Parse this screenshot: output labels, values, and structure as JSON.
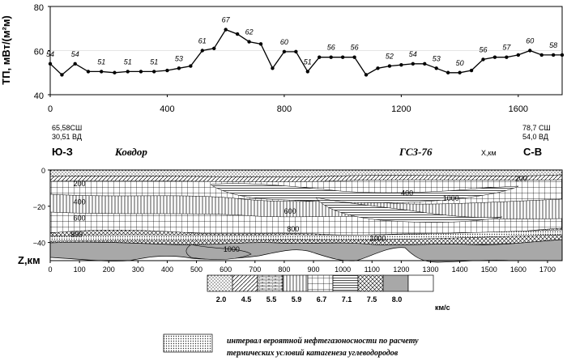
{
  "chart_data": [
    {
      "type": "line",
      "ylabel": "ТП, мВт/(м²м)",
      "ylim": [
        40,
        80
      ],
      "xlim": [
        0,
        1750
      ],
      "yticks": [
        "40",
        "60",
        "80"
      ],
      "xticks": [
        "0",
        "400",
        "800",
        "1200",
        "1600"
      ],
      "point_labels": [
        "54",
        "54",
        "51",
        "51",
        "51",
        "53",
        "61",
        "67",
        "62",
        "60",
        "51",
        "56",
        "56",
        "52",
        "54",
        "53",
        "50",
        "56",
        "57",
        "60",
        "58"
      ],
      "series": [
        {
          "x": [
            0,
            40,
            85,
            130,
            175,
            220,
            265,
            310,
            355,
            400,
            440,
            480,
            520,
            560,
            600,
            640,
            680,
            720,
            760,
            800,
            840,
            880,
            920,
            960,
            1000,
            1040,
            1080,
            1120,
            1160,
            1200,
            1240,
            1280,
            1320,
            1360,
            1400,
            1440,
            1480,
            1520,
            1560,
            1600,
            1640,
            1680,
            1720,
            1750
          ],
          "y": [
            54,
            49,
            54,
            50.5,
            50.5,
            50,
            50.5,
            50.5,
            50.5,
            51,
            52,
            53,
            60,
            61,
            69.5,
            67.5,
            64,
            63,
            52,
            59.5,
            59.5,
            50.5,
            57,
            57,
            57,
            57,
            49,
            52,
            53,
            53.5,
            54,
            54,
            52,
            50,
            50,
            51,
            56,
            57,
            57,
            58,
            60,
            58,
            58,
            58
          ]
        }
      ]
    },
    {
      "type": "heatmap",
      "profile_name": "ГСЗ-76",
      "site_name": "Ковдор",
      "xlabel": "X,км",
      "ylabel": "Z,км",
      "xlim": [
        0,
        1750
      ],
      "ylim": [
        -50,
        0
      ],
      "xticks": [
        "0",
        "100",
        "200",
        "300",
        "400",
        "500",
        "600",
        "700",
        "800",
        "900",
        "1000",
        "1100",
        "1200",
        "1300",
        "1400",
        "1500",
        "1600",
        "1700"
      ],
      "yticks": [
        "0",
        "−20",
        "−40"
      ],
      "left_end": {
        "direction": "Ю-З",
        "coord1": "65,58СШ",
        "coord2": "30,51 ВД"
      },
      "right_end": {
        "direction": "С-В",
        "coord1": "78,7 СШ",
        "coord2": "54,0 ВД"
      },
      "isotherm_labels": [
        "200",
        "400",
        "600",
        "800",
        "1000",
        "200",
        "400",
        "600",
        "800",
        "1000",
        "1000"
      ],
      "velocity_scale": {
        "values": [
          "2.0",
          "4.5",
          "5.5",
          "5.9",
          "6.7",
          "7.1",
          "7.5",
          "8.0"
        ],
        "unit": "км/с"
      },
      "legend": {
        "line1": "интервал вероятной нефтегазоносности по расчету",
        "line2": "термических условий катагенеза углеводородов"
      }
    }
  ]
}
